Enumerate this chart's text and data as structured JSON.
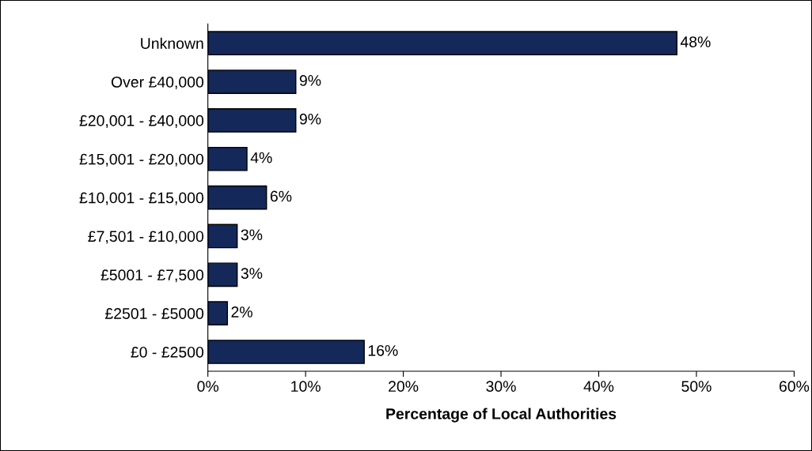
{
  "chart_data": {
    "type": "bar",
    "orientation": "horizontal",
    "xlabel": "Percentage of Local Authorities",
    "categories": [
      "Unknown",
      "Over £40,000",
      "£20,001 - £40,000",
      "£15,001 - £20,000",
      "£10,001 - £15,000",
      "£7,501 - £10,000",
      "£5001 - £7,500",
      "£2501 - £5000",
      "£0 - £2500"
    ],
    "values": [
      48,
      9,
      9,
      4,
      6,
      3,
      3,
      2,
      16
    ],
    "value_labels": [
      "48%",
      "9%",
      "9%",
      "4%",
      "6%",
      "3%",
      "3%",
      "2%",
      "16%"
    ],
    "color": "#14285a",
    "xlim": [
      0,
      60
    ],
    "xticks": [
      {
        "value": 0,
        "label": "0%"
      },
      {
        "value": 10,
        "label": "10%"
      },
      {
        "value": 20,
        "label": "20%"
      },
      {
        "value": 30,
        "label": "30%"
      },
      {
        "value": 40,
        "label": "40%"
      },
      {
        "value": 50,
        "label": "50%"
      },
      {
        "value": 60,
        "label": "60%"
      }
    ],
    "grid": false,
    "legend": false
  }
}
